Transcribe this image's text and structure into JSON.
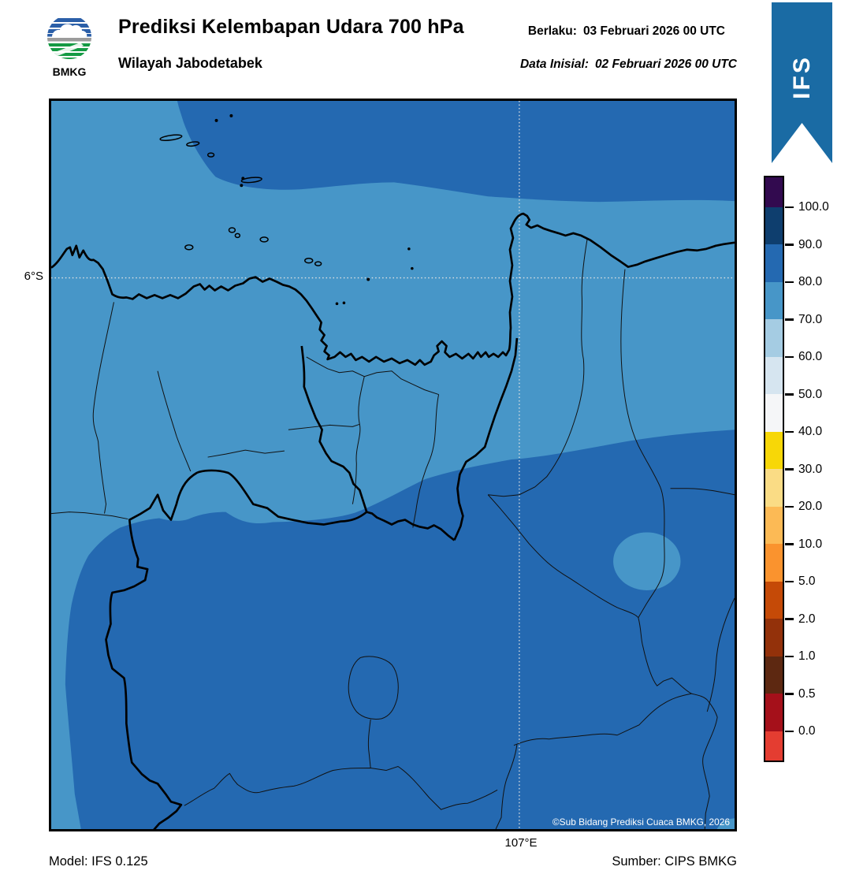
{
  "header": {
    "title": "Prediksi Kelembapan Udara 700 hPa",
    "subtitle": "Wilayah Jabodetabek",
    "valid_label": "Berlaku:",
    "valid_value": "03 Februari 2026 00 UTC",
    "init_label": "Data Inisial:",
    "init_value": "02 Februari 2026 00 UTC",
    "logo_text": "BMKG",
    "ribbon_label": "IFS",
    "ribbon_color": "#1A6BA4"
  },
  "map": {
    "y_axis_label": "6°S",
    "x_axis_label": "107°E",
    "copyright": "©Sub Bidang Prediksi Cuaca BMKG, 2026",
    "colors": {
      "band_70_80": "#4796C8",
      "band_80_90": "#2469B1",
      "gridline": "#E3E3E3",
      "coast": "#000000"
    }
  },
  "colorbar": {
    "labels": [
      "100.0",
      "90.0",
      "80.0",
      "70.0",
      "60.0",
      "50.0",
      "40.0",
      "30.0",
      "20.0",
      "10.0",
      "5.0",
      "2.0",
      "1.0",
      "0.5",
      "0.0"
    ],
    "colors": [
      "#320A4F",
      "#0E3E6E",
      "#2469B1",
      "#4796C8",
      "#A5CCE3",
      "#D6E5F0",
      "#F5F6F8",
      "#F7D707",
      "#FADC85",
      "#FCBA55",
      "#FA932E",
      "#C54A07",
      "#93310A",
      "#5D2811",
      "#A5101A",
      "#E43D31"
    ]
  },
  "footer": {
    "model": "Model: IFS 0.125",
    "source": "Sumber: CIPS BMKG"
  }
}
